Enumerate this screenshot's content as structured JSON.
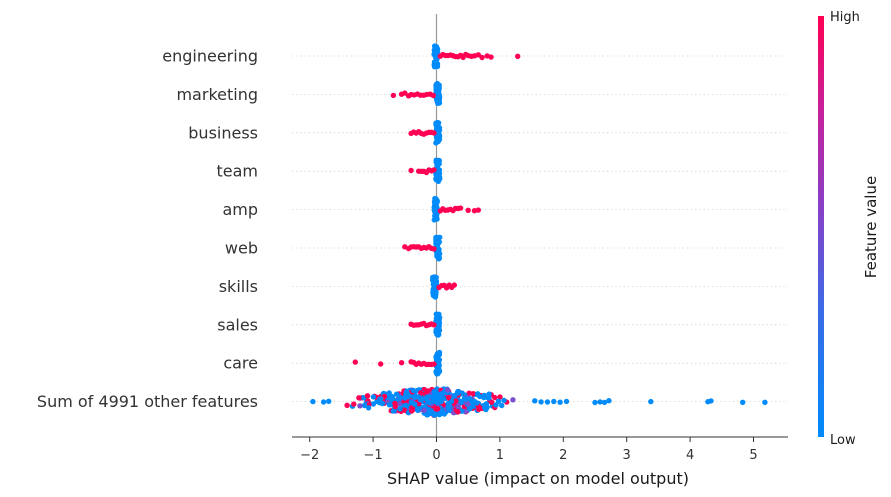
{
  "chart_data": {
    "type": "scatter",
    "subtype": "beeswarm",
    "xlabel": "SHAP value (impact on model output)",
    "xlim": [
      -2.25,
      5.55
    ],
    "x_ticks": [
      -2,
      -1,
      0,
      1,
      2,
      3,
      4,
      5
    ],
    "x_tick_labels": [
      "−2",
      "−1",
      "0",
      "1",
      "2",
      "3",
      "4",
      "5"
    ],
    "zero_line": 0,
    "colorbar": {
      "title": "Feature value",
      "high_label": "High",
      "low_label": "Low",
      "low_color": "#008bfb",
      "high_color": "#ff0052"
    },
    "features": [
      {
        "name": "engineering",
        "low": {
          "min": -0.04,
          "max": 0.02
        },
        "high": [
          0.06,
          0.1,
          0.14,
          0.18,
          0.22,
          0.26,
          0.3,
          0.34,
          0.38,
          0.42,
          0.46,
          0.5,
          0.55,
          0.6,
          0.66,
          0.72,
          0.8,
          0.86,
          1.28
        ]
      },
      {
        "name": "marketing",
        "low": {
          "min": -0.01,
          "max": 0.05
        },
        "high": [
          -0.68,
          -0.55,
          -0.5,
          -0.44,
          -0.4,
          -0.35,
          -0.3,
          -0.25,
          -0.2,
          -0.15,
          -0.1,
          -0.05
        ]
      },
      {
        "name": "business",
        "low": {
          "min": -0.01,
          "max": 0.05
        },
        "high": [
          -0.4,
          -0.36,
          -0.32,
          -0.28,
          -0.24,
          -0.2,
          -0.16,
          -0.12,
          -0.08,
          -0.04
        ]
      },
      {
        "name": "team",
        "low": {
          "min": -0.01,
          "max": 0.05
        },
        "high": [
          -0.4,
          -0.28,
          -0.24,
          -0.2,
          -0.16,
          -0.12,
          -0.08,
          -0.04
        ]
      },
      {
        "name": "amp",
        "low": {
          "min": -0.04,
          "max": 0.02
        },
        "high": [
          0.06,
          0.1,
          0.14,
          0.18,
          0.22,
          0.26,
          0.3,
          0.34,
          0.38,
          0.5,
          0.6,
          0.66
        ]
      },
      {
        "name": "web",
        "low": {
          "min": -0.01,
          "max": 0.05
        },
        "high": [
          -0.5,
          -0.44,
          -0.4,
          -0.36,
          -0.32,
          -0.28,
          -0.24,
          -0.2,
          -0.16,
          -0.12,
          -0.08,
          -0.04
        ]
      },
      {
        "name": "skills",
        "low": {
          "min": -0.06,
          "max": 0.0
        },
        "high": [
          0.04,
          0.08,
          0.12,
          0.16,
          0.2,
          0.24,
          0.28
        ]
      },
      {
        "name": "sales",
        "low": {
          "min": -0.01,
          "max": 0.05
        },
        "high": [
          -0.4,
          -0.36,
          -0.32,
          -0.28,
          -0.24,
          -0.2,
          -0.16,
          -0.12,
          -0.08,
          -0.04
        ]
      },
      {
        "name": "care",
        "low": {
          "min": -0.01,
          "max": 0.05
        },
        "high": [
          -1.28,
          -0.88,
          -0.55,
          -0.4,
          -0.36,
          -0.32,
          -0.28,
          -0.24,
          -0.2,
          -0.16,
          -0.12,
          -0.08,
          -0.04
        ]
      },
      {
        "name": "Sum of 4991 other features",
        "outliers": [
          -1.95,
          -1.78,
          -1.7,
          1.55,
          1.65,
          1.75,
          1.85,
          1.95,
          2.05,
          2.5,
          2.58,
          2.65,
          2.72,
          3.38,
          4.28,
          4.33,
          4.83,
          5.18
        ],
        "core_min": -1.6,
        "core_max": 1.5
      }
    ]
  }
}
